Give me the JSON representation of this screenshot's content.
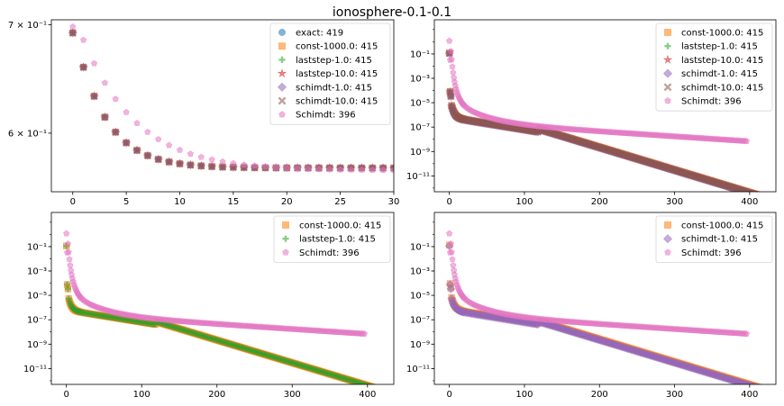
{
  "title": "ionosphere-0.1-0.1",
  "colors": {
    "exact": "#1f77b4",
    "const": "#ff7f0e",
    "laststep1": "#2ca02c",
    "laststep10": "#d62728",
    "schimdt1": "#9467bd",
    "schimdt10": "#8c564b",
    "schmidt": "#e377c2"
  },
  "chart_data": [
    {
      "type": "scatter",
      "xlim": [
        -2,
        30
      ],
      "ylim": [
        0.552,
        0.705
      ],
      "yscale": "log",
      "xticks": [
        "0",
        "5",
        "10",
        "15",
        "20",
        "25",
        "30"
      ],
      "yticks": [
        {
          "value": 0.6,
          "label": "6 × 10⁻¹"
        },
        {
          "value": 0.7,
          "label": "7 × 10⁻¹"
        }
      ],
      "legend_position": "upper right",
      "legend": [
        {
          "label": "exact: 419",
          "marker": "circle",
          "color": "exact"
        },
        {
          "label": "const-1000.0: 415",
          "marker": "square",
          "color": "const"
        },
        {
          "label": "laststep-1.0: 415",
          "marker": "plus",
          "color": "laststep1"
        },
        {
          "label": "laststep-10.0: 415",
          "marker": "star",
          "color": "laststep10"
        },
        {
          "label": "schimdt-1.0: 415",
          "marker": "diamond",
          "color": "schimdt1"
        },
        {
          "label": "schimdt-10.0: 415",
          "marker": "x",
          "color": "schimdt10"
        },
        {
          "label": "Schimdt: 396",
          "marker": "pentagon",
          "color": "schmidt"
        }
      ],
      "series": [
        {
          "name": "exact: 419",
          "color": "exact",
          "marker": "circle",
          "kind": "zoom_main"
        },
        {
          "name": "const-1000.0: 415",
          "color": "const",
          "marker": "square",
          "kind": "zoom_main"
        },
        {
          "name": "laststep-1.0: 415",
          "color": "laststep1",
          "marker": "plus",
          "kind": "zoom_main"
        },
        {
          "name": "laststep-10.0: 415",
          "color": "laststep10",
          "marker": "star",
          "kind": "zoom_main"
        },
        {
          "name": "schimdt-1.0: 415",
          "color": "schimdt1",
          "marker": "diamond",
          "kind": "zoom_main"
        },
        {
          "name": "schimdt-10.0: 415",
          "color": "schimdt10",
          "marker": "x",
          "kind": "zoom_main"
        },
        {
          "name": "Schimdt: 396",
          "color": "schmidt",
          "marker": "pentagon",
          "kind": "zoom_schmidt"
        }
      ]
    },
    {
      "type": "scatter",
      "xlim": [
        -20,
        435
      ],
      "ylim": [
        -12.3,
        1.8
      ],
      "yscale": "log",
      "xticks": [
        "0",
        "100",
        "200",
        "300",
        "400"
      ],
      "yticks": [
        {
          "exp": -1
        },
        {
          "exp": -3
        },
        {
          "exp": -5
        },
        {
          "exp": -7
        },
        {
          "exp": -9
        },
        {
          "exp": -11
        }
      ],
      "legend_position": "upper right",
      "legend": [
        {
          "label": "const-1000.0: 415",
          "marker": "square",
          "color": "const"
        },
        {
          "label": "laststep-1.0: 415",
          "marker": "plus",
          "color": "laststep1"
        },
        {
          "label": "laststep-10.0: 415",
          "marker": "star",
          "color": "laststep10"
        },
        {
          "label": "schimdt-1.0: 415",
          "marker": "diamond",
          "color": "schimdt1"
        },
        {
          "label": "schimdt-10.0: 415",
          "marker": "x",
          "color": "schimdt10"
        },
        {
          "label": "Schimdt: 396",
          "marker": "pentagon",
          "color": "schmidt"
        }
      ],
      "series": [
        {
          "name": "const-1000.0: 415",
          "color": "const",
          "marker": "square",
          "kind": "main",
          "offset": 0.04
        },
        {
          "name": "laststep-1.0: 415",
          "color": "laststep1",
          "marker": "plus",
          "kind": "main",
          "offset": 0.02
        },
        {
          "name": "laststep-10.0: 415",
          "color": "laststep10",
          "marker": "star",
          "kind": "main",
          "offset": 0.0
        },
        {
          "name": "schimdt-1.0: 415",
          "color": "schimdt1",
          "marker": "diamond",
          "kind": "main",
          "offset": -0.02
        },
        {
          "name": "schimdt-10.0: 415",
          "color": "schimdt10",
          "marker": "x",
          "kind": "main",
          "offset": 0.0
        },
        {
          "name": "Schimdt: 396",
          "color": "schmidt",
          "marker": "pentagon",
          "kind": "schmidt"
        }
      ]
    },
    {
      "type": "scatter",
      "xlim": [
        -20,
        435
      ],
      "ylim": [
        -12.3,
        1.8
      ],
      "yscale": "log",
      "xticks": [
        "0",
        "100",
        "200",
        "300",
        "400"
      ],
      "yticks": [
        {
          "exp": -1
        },
        {
          "exp": -3
        },
        {
          "exp": -5
        },
        {
          "exp": -7
        },
        {
          "exp": -9
        },
        {
          "exp": -11
        }
      ],
      "legend_position": "upper right",
      "legend": [
        {
          "label": "const-1000.0: 415",
          "marker": "square",
          "color": "const"
        },
        {
          "label": "laststep-1.0: 415",
          "marker": "plus",
          "color": "laststep1"
        },
        {
          "label": "Schimdt: 396",
          "marker": "pentagon",
          "color": "schmidt"
        }
      ],
      "series": [
        {
          "name": "const-1000.0: 415",
          "color": "const",
          "marker": "square",
          "kind": "main",
          "offset": 0.0
        },
        {
          "name": "laststep-1.0: 415",
          "color": "laststep1",
          "marker": "plus",
          "kind": "main",
          "offset": 0.0
        },
        {
          "name": "Schimdt: 396",
          "color": "schmidt",
          "marker": "pentagon",
          "kind": "schmidt"
        }
      ]
    },
    {
      "type": "scatter",
      "xlim": [
        -20,
        435
      ],
      "ylim": [
        -12.3,
        1.8
      ],
      "yscale": "log",
      "xticks": [
        "0",
        "100",
        "200",
        "300",
        "400"
      ],
      "yticks": [
        {
          "exp": -1
        },
        {
          "exp": -3
        },
        {
          "exp": -5
        },
        {
          "exp": -7
        },
        {
          "exp": -9
        },
        {
          "exp": -11
        }
      ],
      "legend_position": "upper right",
      "legend": [
        {
          "label": "const-1000.0: 415",
          "marker": "square",
          "color": "const"
        },
        {
          "label": "schimdt-1.0: 415",
          "marker": "diamond",
          "color": "schimdt1"
        },
        {
          "label": "Schimdt: 396",
          "marker": "pentagon",
          "color": "schmidt"
        }
      ],
      "series": [
        {
          "name": "const-1000.0: 415",
          "color": "const",
          "marker": "square",
          "kind": "main",
          "offset": 0.08
        },
        {
          "name": "schimdt-1.0: 415",
          "color": "schimdt1",
          "marker": "diamond",
          "kind": "main",
          "offset": 0.0
        },
        {
          "name": "Schimdt: 396",
          "color": "schmidt",
          "marker": "pentagon",
          "kind": "schmidt"
        }
      ]
    }
  ]
}
